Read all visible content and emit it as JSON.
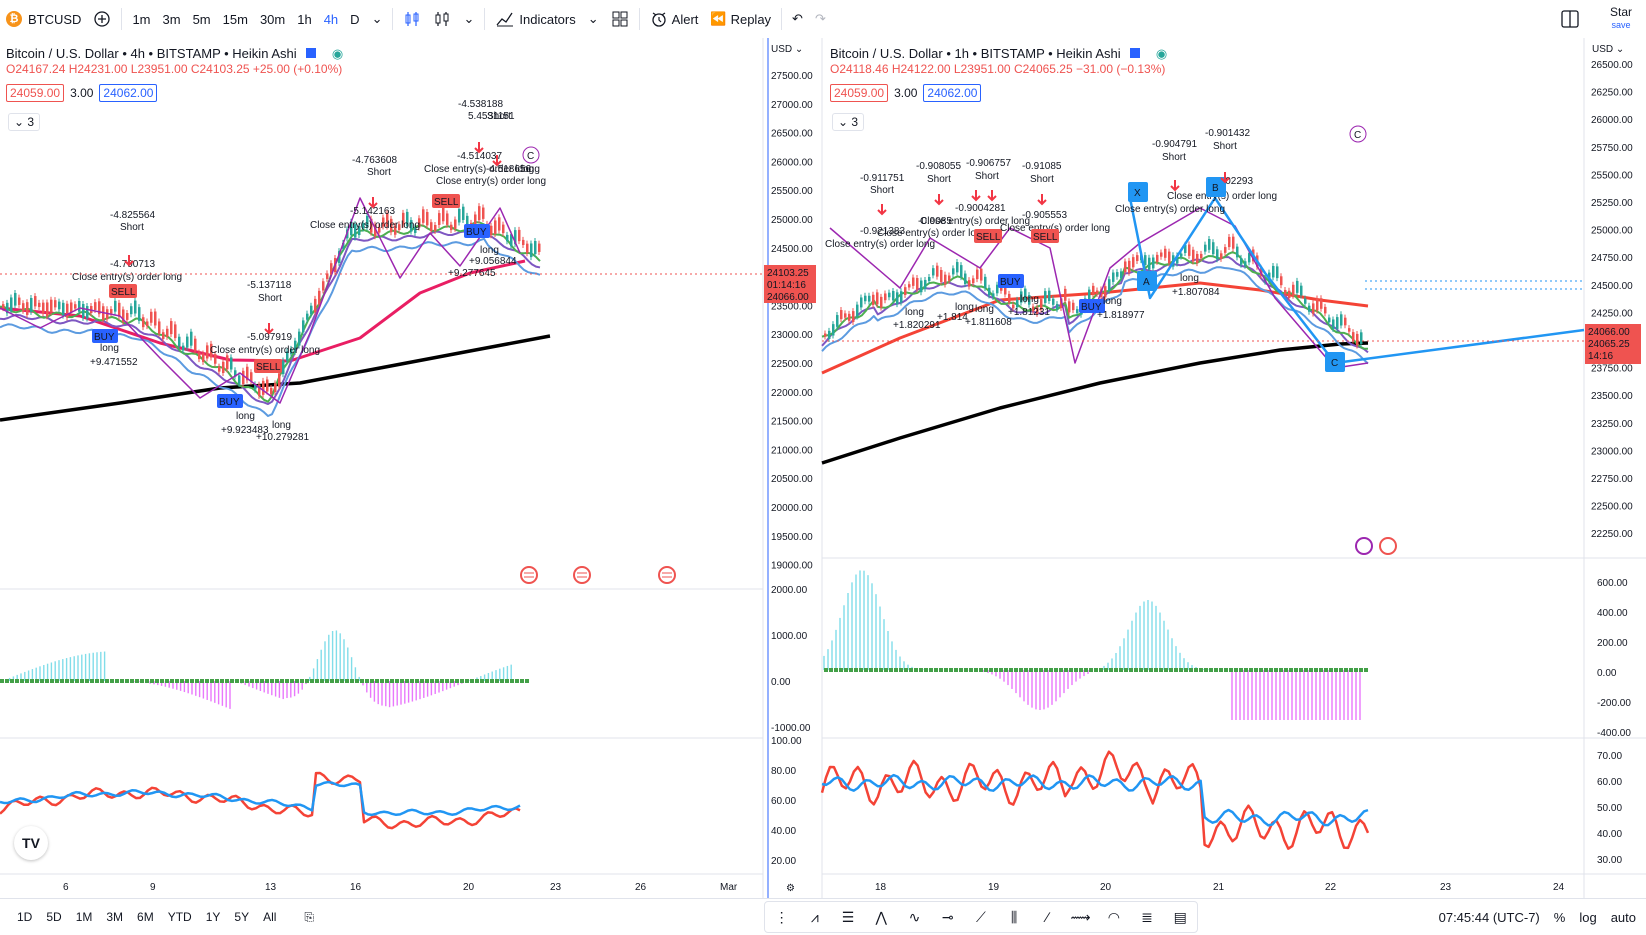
{
  "toolbar": {
    "symbol": "BTCUSD",
    "intervals": [
      "1m",
      "3m",
      "5m",
      "15m",
      "30m",
      "1h",
      "4h",
      "D"
    ],
    "active_interval": "4h",
    "indicators_label": "Indicators",
    "alert_label": "Alert",
    "replay_label": "Replay",
    "star_label": "Star",
    "save_label": "save"
  },
  "left_pane": {
    "title": "Bitcoin / U.S. Dollar • 4h • BITSTAMP • Heikin Ashi",
    "ohlc": "O24167.24  H24231.00  L23951.00  C24103.25  +25.00 (+0.10%)",
    "sell_price": "24059.00",
    "spread": "3.00",
    "buy_price": "24062.00",
    "indicator_count": "3",
    "currency": "USD",
    "price_ticks": [
      "27500.00",
      "27000.00",
      "26500.00",
      "26000.00",
      "25500.00",
      "25000.00",
      "24500.00",
      "24000.00",
      "23500.00",
      "23000.00",
      "22500.00",
      "22000.00",
      "21500.00",
      "21000.00",
      "20500.00",
      "20000.00",
      "19500.00",
      "19000.00"
    ],
    "last_price_tag": "24103.25",
    "countdown": "01:14:16",
    "tag_24066": "24066.00",
    "macd_ticks": [
      "2000.00",
      "1000.00",
      "0.00",
      "-1000.00"
    ],
    "rsi_ticks": [
      "100.00",
      "80.00",
      "60.00",
      "40.00",
      "20.00"
    ],
    "time_ticks": [
      "6",
      "9",
      "13",
      "16",
      "20",
      "23",
      "26",
      "Mar"
    ],
    "annotations": [
      "-4.825564",
      "Short",
      "-4.790713",
      "Close entry(s) order long",
      "SELL",
      "BUY",
      "long",
      "+9.471552",
      "-5.137118",
      "Short",
      "-5.097919",
      "Close entry(s) order long",
      "SELL",
      "BUY",
      "long",
      "+9.923483",
      "long",
      "+10.279281",
      "-4.763608",
      "Short",
      "-5.142163",
      "Close entry(s) order long",
      "-4.538188",
      "Short",
      "5.4531151",
      "-4.514037",
      "Close entry(s) order long",
      "Close entry(s) order long",
      "-4.518656",
      "long",
      "SELL",
      "BUY",
      "long",
      "+9.056844",
      "+9.277645",
      "C"
    ]
  },
  "right_pane": {
    "title": "Bitcoin / U.S. Dollar • 1h • BITSTAMP • Heikin Ashi",
    "ohlc": "O24118.46  H24122.00  L23951.00  C24065.25  −31.00 (−0.13%)",
    "sell_price": "24059.00",
    "spread": "3.00",
    "buy_price": "24062.00",
    "indicator_count": "3",
    "currency": "USD",
    "price_ticks": [
      "26500.00",
      "26250.00",
      "26000.00",
      "25750.00",
      "25500.00",
      "25250.00",
      "25000.00",
      "24750.00",
      "24500.00",
      "24250.00",
      "24000.00",
      "23750.00",
      "23500.00",
      "23250.00",
      "23000.00",
      "22750.00",
      "22500.00",
      "22250.00"
    ],
    "tag_24066": "24066.00",
    "last_price_tag": "24065.25",
    "countdown": "14:16",
    "macd_ticks": [
      "600.00",
      "400.00",
      "200.00",
      "0.00",
      "-200.00",
      "-400.00"
    ],
    "rsi_ticks": [
      "70.00",
      "60.00",
      "50.00",
      "40.00",
      "30.00"
    ],
    "time_ticks": [
      "18",
      "19",
      "20",
      "21",
      "22",
      "23",
      "24"
    ],
    "annotations": [
      "-0.911751",
      "Short",
      "-0.921383",
      "Close entry(s) order long",
      "long",
      "+1.820291",
      "-0.908055",
      "Short",
      "-0.9085",
      "Close entry(s) order long",
      "long",
      "+1.814",
      "-0.906757",
      "Short",
      "-0.9004281",
      "Close entry(s) order long",
      "SELL",
      "long",
      "+1.811608",
      "-0.91085",
      "Short",
      "-0.905553",
      "Close entry(s) order long",
      "SELL",
      "BUY",
      "long",
      "+1.81231",
      "BUY",
      "long",
      "+1.818977",
      "-0.904791",
      "Short",
      "-0.901432",
      "Short",
      "-0.902293",
      "Close entry(s) order long",
      "Close entry(s) order long",
      "long",
      "+1.807084",
      "X",
      "A",
      "B",
      "C",
      "C"
    ]
  },
  "bottombar": {
    "ranges": [
      "1D",
      "5D",
      "1M",
      "3M",
      "6M",
      "YTD",
      "1Y",
      "5Y",
      "All"
    ],
    "time": "07:45:44 (UTC-7)",
    "percent": "%",
    "log": "log",
    "auto": "auto"
  },
  "colors": {
    "accent": "#2962ff",
    "sell": "#ef5350",
    "buy": "#2962ff",
    "bull": "#26a69a",
    "ema_red": "#e91e63",
    "ema_black": "#000000",
    "macd_pos": "#4dd0e1",
    "macd_neg": "#e040fb",
    "rsi_blue": "#2196f3",
    "rsi_red": "#f44336"
  }
}
